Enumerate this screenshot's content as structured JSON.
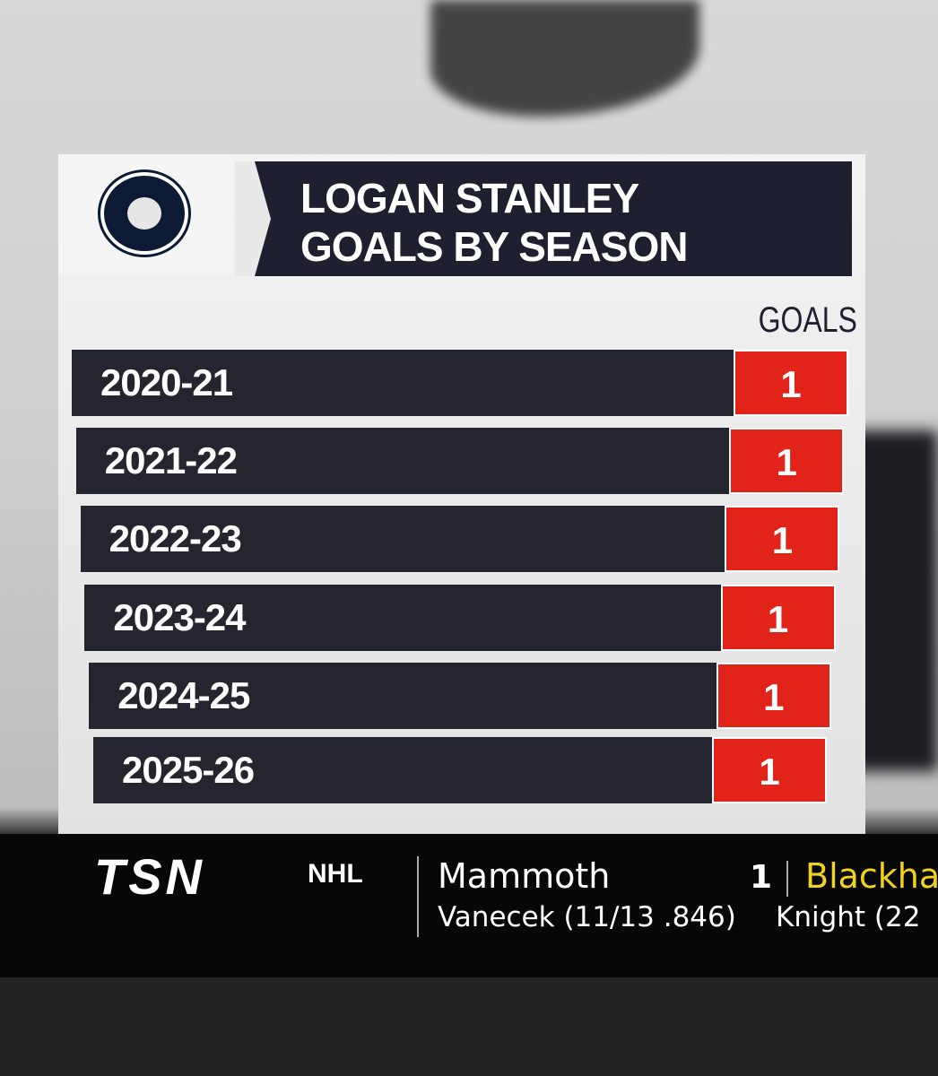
{
  "header": {
    "title_line1": "LOGAN STANLEY",
    "title_line2": "GOALS BY SEASON"
  },
  "table": {
    "column_header": "GOALS",
    "rows": [
      [
        "2020-21",
        1
      ],
      [
        "2021-22",
        1
      ],
      [
        "2022-23",
        1
      ],
      [
        "2023-24",
        1
      ],
      [
        "2024-25",
        1
      ],
      [
        "2025-26",
        1
      ]
    ]
  },
  "ticker": {
    "network": "TSN",
    "league": "NHL",
    "team1": "Mammoth",
    "team1_score": 1,
    "team1_goalie": "Vanecek (11/13 .846)",
    "team2": "Blackha",
    "team2_goalie": "Knight (22"
  }
}
